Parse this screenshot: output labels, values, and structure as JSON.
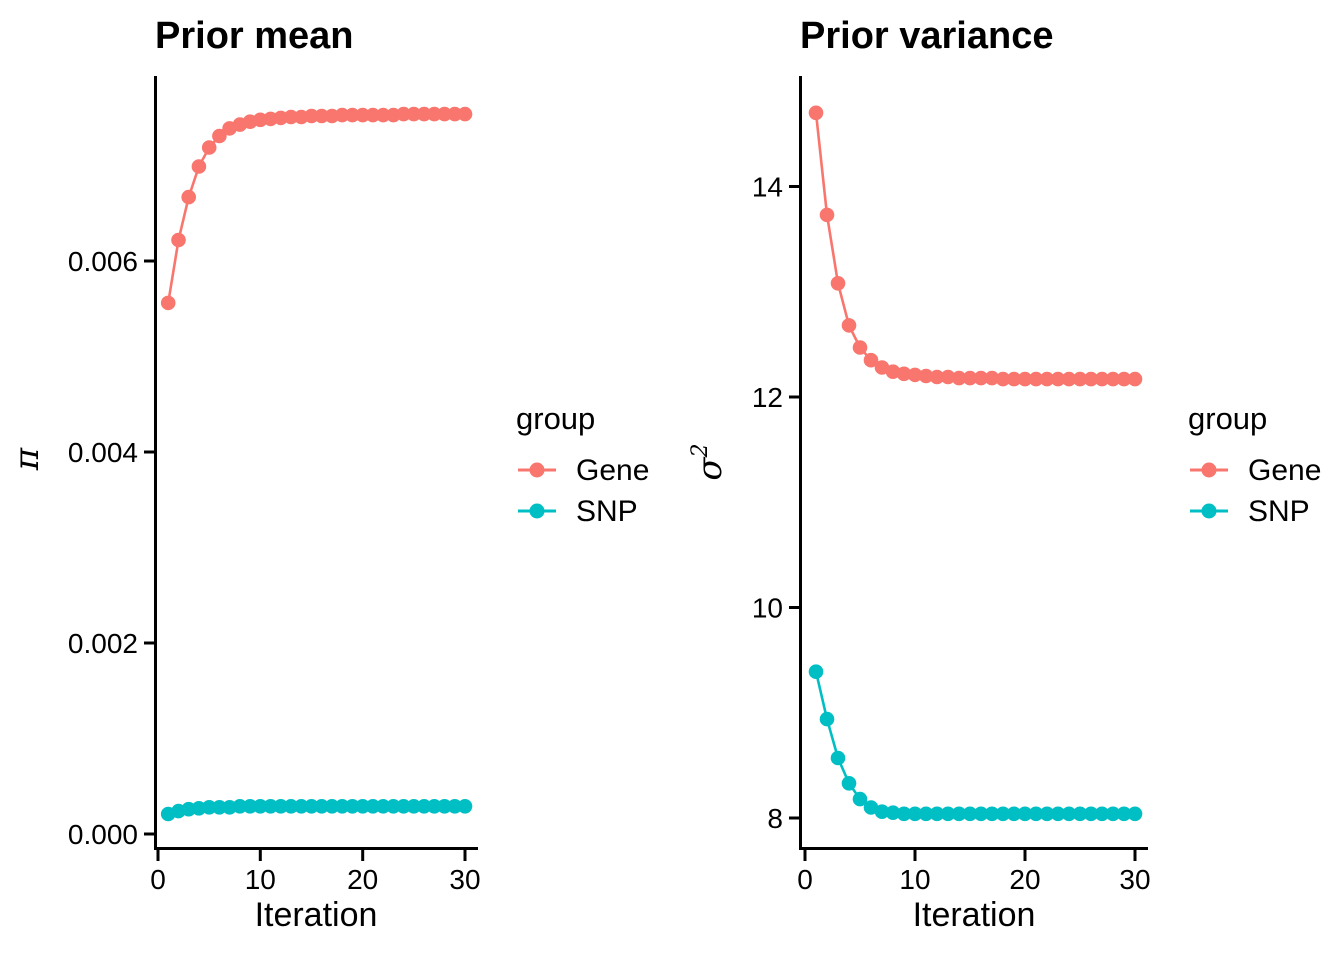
{
  "figure": {
    "background": "#ffffff",
    "text_color": "#000000",
    "accent_colors": {
      "gene": "#F8766D",
      "snp": "#00BFC4"
    }
  },
  "chart_data": [
    {
      "type": "line",
      "title": "Prior mean",
      "xlabel": "Iteration",
      "ylabel": "π",
      "legend_title": "group",
      "legend_position": "right",
      "grid": false,
      "x": [
        1,
        2,
        3,
        4,
        5,
        6,
        7,
        8,
        9,
        10,
        11,
        12,
        13,
        14,
        15,
        16,
        17,
        18,
        19,
        20,
        21,
        22,
        23,
        24,
        25,
        26,
        27,
        28,
        29,
        30
      ],
      "x_ticks": [
        0,
        10,
        20,
        30
      ],
      "x_tick_labels": [
        "0",
        "10",
        "20",
        "30"
      ],
      "xlim": [
        -0.5,
        31.5
      ],
      "y_ticks": [
        0.0,
        0.002,
        0.004,
        0.006
      ],
      "y_tick_labels": [
        "0.000",
        "0.002",
        "0.004",
        "0.006"
      ],
      "ylim": [
        -0.0002,
        0.0079
      ],
      "series": [
        {
          "name": "Gene",
          "color": "#F8766D",
          "values": [
            0.00557,
            0.00623,
            0.00668,
            0.007,
            0.0072,
            0.00732,
            0.0074,
            0.00744,
            0.00747,
            0.00749,
            0.0075,
            0.00751,
            0.00752,
            0.00752,
            0.00753,
            0.00753,
            0.00753,
            0.00754,
            0.00754,
            0.00754,
            0.00754,
            0.00754,
            0.00754,
            0.00755,
            0.00755,
            0.00755,
            0.00755,
            0.00755,
            0.00755,
            0.00755
          ]
        },
        {
          "name": "SNP",
          "color": "#00BFC4",
          "values": [
            0.00021,
            0.00024,
            0.00026,
            0.00027,
            0.00028,
            0.00028,
            0.00028,
            0.00029,
            0.00029,
            0.00029,
            0.00029,
            0.00029,
            0.00029,
            0.00029,
            0.00029,
            0.00029,
            0.00029,
            0.00029,
            0.00029,
            0.00029,
            0.00029,
            0.00029,
            0.00029,
            0.00029,
            0.00029,
            0.00029,
            0.00029,
            0.00029,
            0.00029,
            0.00029
          ]
        }
      ]
    },
    {
      "type": "line",
      "title": "Prior variance",
      "xlabel": "Iteration",
      "ylabel": "σ²",
      "ylabel_base": "σ",
      "ylabel_exponent": "2",
      "legend_title": "group",
      "legend_position": "right",
      "grid": false,
      "x": [
        1,
        2,
        3,
        4,
        5,
        6,
        7,
        8,
        9,
        10,
        11,
        12,
        13,
        14,
        15,
        16,
        17,
        18,
        19,
        20,
        21,
        22,
        23,
        24,
        25,
        26,
        27,
        28,
        29,
        30
      ],
      "x_ticks": [
        0,
        10,
        20,
        30
      ],
      "x_tick_labels": [
        "0",
        "10",
        "20",
        "30"
      ],
      "xlim": [
        -0.5,
        31.5
      ],
      "y_ticks": [
        8,
        10,
        12,
        14
      ],
      "y_tick_labels": [
        "8",
        "10",
        "12",
        "14"
      ],
      "ylim": [
        7.7,
        15.0
      ],
      "series": [
        {
          "name": "Gene",
          "color": "#F8766D",
          "values": [
            14.7,
            13.73,
            13.08,
            12.68,
            12.47,
            12.35,
            12.28,
            12.24,
            12.22,
            12.21,
            12.2,
            12.19,
            12.19,
            12.18,
            12.18,
            12.18,
            12.18,
            12.17,
            12.17,
            12.17,
            12.17,
            12.17,
            12.17,
            12.17,
            12.17,
            12.17,
            12.17,
            12.17,
            12.17,
            12.17
          ]
        },
        {
          "name": "SNP",
          "color": "#00BFC4",
          "values": [
            9.39,
            8.94,
            8.57,
            8.33,
            8.18,
            8.1,
            8.06,
            8.05,
            8.04,
            8.04,
            8.04,
            8.04,
            8.04,
            8.04,
            8.04,
            8.04,
            8.04,
            8.04,
            8.04,
            8.04,
            8.04,
            8.04,
            8.04,
            8.04,
            8.04,
            8.04,
            8.04,
            8.04,
            8.04,
            8.04
          ]
        }
      ]
    }
  ]
}
